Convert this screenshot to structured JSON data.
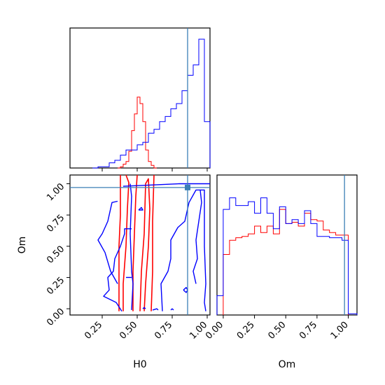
{
  "chart_data": [
    {
      "type": "histogram",
      "panel": "H0 marginal",
      "xlim": [
        0.02,
        1.02
      ],
      "xticks": [
        0.25,
        0.5,
        0.75,
        1.0
      ],
      "show_x_tick_labels": false,
      "show_y_ticks": false,
      "ylim": [
        0,
        1
      ],
      "truth_line": {
        "x": 0.86
      },
      "series": [
        {
          "color": "#ff0000",
          "bins": [
            [
              0.36,
              0.38,
              0.0
            ],
            [
              0.38,
              0.4,
              0.01
            ],
            [
              0.4,
              0.42,
              0.03
            ],
            [
              0.42,
              0.44,
              0.05
            ],
            [
              0.44,
              0.46,
              0.13
            ],
            [
              0.46,
              0.48,
              0.29
            ],
            [
              0.48,
              0.5,
              0.42
            ],
            [
              0.5,
              0.52,
              0.55
            ],
            [
              0.52,
              0.54,
              0.5
            ],
            [
              0.54,
              0.56,
              0.36
            ],
            [
              0.56,
              0.58,
              0.14
            ],
            [
              0.58,
              0.6,
              0.05
            ],
            [
              0.6,
              0.62,
              0.02
            ],
            [
              0.62,
              0.64,
              0.0
            ]
          ]
        },
        {
          "color": "#0000ff",
          "bins": [
            [
              0.18,
              0.22,
              0.0
            ],
            [
              0.22,
              0.26,
              0.01
            ],
            [
              0.26,
              0.3,
              0.01
            ],
            [
              0.3,
              0.34,
              0.04
            ],
            [
              0.34,
              0.38,
              0.06
            ],
            [
              0.38,
              0.42,
              0.1
            ],
            [
              0.42,
              0.46,
              0.14
            ],
            [
              0.46,
              0.5,
              0.14
            ],
            [
              0.5,
              0.54,
              0.18
            ],
            [
              0.54,
              0.58,
              0.2
            ],
            [
              0.58,
              0.62,
              0.27
            ],
            [
              0.62,
              0.66,
              0.3
            ],
            [
              0.66,
              0.7,
              0.36
            ],
            [
              0.7,
              0.74,
              0.4
            ],
            [
              0.74,
              0.78,
              0.46
            ],
            [
              0.78,
              0.82,
              0.5
            ],
            [
              0.82,
              0.86,
              0.6
            ],
            [
              0.86,
              0.9,
              0.72
            ],
            [
              0.9,
              0.94,
              0.8
            ],
            [
              0.94,
              0.98,
              1.0
            ],
            [
              0.98,
              1.02,
              0.36
            ]
          ]
        }
      ]
    },
    {
      "type": "contour",
      "panel": "H0 vs Om joint",
      "xlabel": "H0",
      "ylabel": "Om",
      "xlim": [
        0.02,
        1.02
      ],
      "ylim": [
        -0.05,
        1.07
      ],
      "xticks": [
        0.25,
        0.5,
        0.75,
        1.0
      ],
      "xtick_labels": [
        "0.25",
        "0.50",
        "0.75",
        "1.00"
      ],
      "yticks": [
        0.0,
        0.25,
        0.5,
        0.75,
        1.0
      ],
      "ytick_labels": [
        "0.00",
        "0.25",
        "0.50",
        "0.75",
        "1.00"
      ],
      "truth_point": {
        "x": 0.86,
        "y": 0.97
      },
      "series": [
        {
          "color": "#ff0000",
          "contours": [
            [
              [
                0.4,
                -0.02
              ],
              [
                0.4,
                0.2
              ],
              [
                0.42,
                0.5
              ],
              [
                0.43,
                0.8
              ],
              [
                0.44,
                1.01
              ],
              [
                0.42,
                1.07
              ]
            ],
            [
              [
                0.47,
                -0.02
              ],
              [
                0.47,
                0.3
              ],
              [
                0.48,
                0.6
              ],
              [
                0.49,
                0.9
              ],
              [
                0.5,
                1.07
              ]
            ],
            [
              [
                0.37,
                -0.02
              ],
              [
                0.37,
                0.25
              ],
              [
                0.37,
                0.5
              ],
              [
                0.38,
                0.75
              ],
              [
                0.38,
                1.07
              ]
            ],
            [
              [
                0.52,
                -0.02
              ],
              [
                0.53,
                0.3
              ],
              [
                0.55,
                0.6
              ],
              [
                0.56,
                1.0
              ],
              [
                0.58,
                1.04
              ],
              [
                0.59,
                0.8
              ],
              [
                0.58,
                0.5
              ],
              [
                0.56,
                0.2
              ],
              [
                0.55,
                -0.02
              ]
            ],
            [
              [
                0.6,
                -0.02
              ],
              [
                0.61,
                0.3
              ],
              [
                0.61,
                0.7
              ],
              [
                0.62,
                1.07
              ]
            ]
          ]
        },
        {
          "color": "#0000ff",
          "contours": [
            [
              [
                0.4,
                0.98
              ],
              [
                0.6,
                0.99
              ],
              [
                0.8,
                1.0
              ],
              [
                1.0,
                1.0
              ],
              [
                1.02,
                1.0
              ]
            ],
            [
              [
                0.46,
                -0.01
              ],
              [
                0.47,
                0.2
              ],
              [
                0.46,
                0.3
              ],
              [
                0.45,
                0.6
              ],
              [
                0.46,
                0.9
              ],
              [
                0.45,
                1.0
              ]
            ],
            [
              [
                0.36,
                0.2
              ],
              [
                0.31,
                0.3
              ],
              [
                0.27,
                0.45
              ],
              [
                0.22,
                0.55
              ],
              [
                0.25,
                0.6
              ],
              [
                0.29,
                0.7
              ],
              [
                0.31,
                0.8
              ],
              [
                0.32,
                0.85
              ],
              [
                0.36,
                0.86
              ]
            ],
            [
              [
                0.39,
                -0.02
              ],
              [
                0.35,
                0.05
              ],
              [
                0.26,
                0.1
              ],
              [
                0.3,
                0.15
              ],
              [
                0.29,
                0.25
              ],
              [
                0.33,
                0.3
              ],
              [
                0.34,
                0.4
              ],
              [
                0.38,
                0.5
              ],
              [
                0.41,
                0.6
              ],
              [
                0.41,
                0.64
              ],
              [
                0.46,
                0.64
              ]
            ],
            [
              [
                0.68,
                -0.02
              ],
              [
                0.67,
                0.2
              ],
              [
                0.72,
                0.3
              ],
              [
                0.74,
                0.4
              ],
              [
                0.74,
                0.55
              ],
              [
                0.79,
                0.65
              ],
              [
                0.84,
                0.7
              ],
              [
                0.87,
                0.85
              ],
              [
                0.92,
                0.95
              ],
              [
                0.98,
                0.95
              ],
              [
                0.98,
                0.8
              ],
              [
                0.98,
                0.5
              ],
              [
                0.99,
                0.2
              ],
              [
                0.98,
                0.05
              ],
              [
                0.99,
                -0.02
              ]
            ],
            [
              [
                0.92,
                0.2
              ],
              [
                0.9,
                0.3
              ],
              [
                0.93,
                0.4
              ],
              [
                0.92,
                0.55
              ],
              [
                0.94,
                0.7
              ],
              [
                0.96,
                0.85
              ],
              [
                0.95,
                0.95
              ]
            ],
            [
              [
                0.42,
                0.25
              ],
              [
                0.46,
                0.25
              ]
            ],
            [
              [
                0.54,
                0.0
              ],
              [
                0.55,
                0.01
              ],
              [
                0.56,
                0.0
              ]
            ],
            [
              [
                0.83,
                0.15
              ],
              [
                0.85,
                0.17
              ],
              [
                0.86,
                0.15
              ],
              [
                0.85,
                0.13
              ],
              [
                0.83,
                0.15
              ]
            ],
            [
              [
                0.51,
                0.79
              ],
              [
                0.53,
                0.81
              ],
              [
                0.54,
                0.79
              ],
              [
                0.51,
                0.79
              ]
            ],
            [
              [
                0.61,
                -0.01
              ],
              [
                0.64,
                0.0
              ],
              [
                0.65,
                -0.01
              ]
            ],
            [
              [
                0.74,
                -0.01
              ],
              [
                0.75,
                0.0
              ],
              [
                0.76,
                -0.01
              ]
            ]
          ]
        }
      ]
    },
    {
      "type": "histogram",
      "panel": "Om marginal",
      "xlabel": "Om",
      "xlim": [
        -0.05,
        1.07
      ],
      "xticks": [
        0.0,
        0.25,
        0.5,
        0.75,
        1.0
      ],
      "xtick_labels": [
        "0.00",
        "0.25",
        "0.50",
        "0.75",
        "1.00"
      ],
      "show_y_ticks": false,
      "ylim": [
        0,
        1
      ],
      "truth_line": {
        "x": 0.97
      },
      "series": [
        {
          "color": "#ff0000",
          "bins": [
            [
              0.0,
              0.05,
              0.47
            ],
            [
              0.05,
              0.1,
              0.58
            ],
            [
              0.1,
              0.15,
              0.6
            ],
            [
              0.15,
              0.2,
              0.61
            ],
            [
              0.2,
              0.25,
              0.63
            ],
            [
              0.25,
              0.3,
              0.69
            ],
            [
              0.3,
              0.35,
              0.64
            ],
            [
              0.35,
              0.4,
              0.69
            ],
            [
              0.4,
              0.45,
              0.63
            ],
            [
              0.45,
              0.5,
              0.82
            ],
            [
              0.5,
              0.55,
              0.71
            ],
            [
              0.55,
              0.6,
              0.72
            ],
            [
              0.6,
              0.65,
              0.69
            ],
            [
              0.65,
              0.7,
              0.79
            ],
            [
              0.7,
              0.75,
              0.74
            ],
            [
              0.75,
              0.8,
              0.73
            ],
            [
              0.8,
              0.85,
              0.66
            ],
            [
              0.85,
              0.9,
              0.64
            ],
            [
              0.9,
              0.95,
              0.62
            ],
            [
              0.95,
              1.0,
              0.62
            ]
          ]
        },
        {
          "color": "#0000ff",
          "bins": [
            [
              -0.05,
              0.0,
              0.15
            ],
            [
              0.0,
              0.05,
              0.82
            ],
            [
              0.05,
              0.1,
              0.91
            ],
            [
              0.1,
              0.15,
              0.85
            ],
            [
              0.15,
              0.2,
              0.85
            ],
            [
              0.2,
              0.25,
              0.88
            ],
            [
              0.25,
              0.3,
              0.79
            ],
            [
              0.3,
              0.35,
              0.91
            ],
            [
              0.35,
              0.4,
              0.79
            ],
            [
              0.4,
              0.45,
              0.67
            ],
            [
              0.45,
              0.5,
              0.84
            ],
            [
              0.5,
              0.55,
              0.71
            ],
            [
              0.55,
              0.6,
              0.74
            ],
            [
              0.6,
              0.65,
              0.71
            ],
            [
              0.65,
              0.7,
              0.81
            ],
            [
              0.7,
              0.75,
              0.71
            ],
            [
              0.75,
              0.8,
              0.61
            ],
            [
              0.8,
              0.85,
              0.61
            ],
            [
              0.85,
              0.9,
              0.6
            ],
            [
              0.9,
              0.95,
              0.6
            ],
            [
              0.95,
              1.0,
              0.58
            ],
            [
              1.0,
              1.07,
              0.01
            ]
          ]
        }
      ]
    }
  ],
  "colors": {
    "truth": "#3b7fb6",
    "axes": "#000000"
  }
}
